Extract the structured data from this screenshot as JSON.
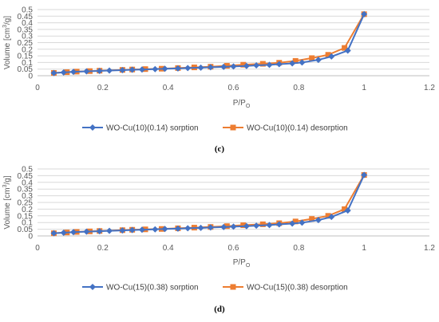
{
  "colors": {
    "sorption": "#4472c4",
    "desorption": "#ed7d31",
    "grid": "#d9d9d9",
    "axis": "#bfbfbf"
  },
  "chart_data": [
    {
      "type": "line",
      "panel_label": "(c)",
      "xlabel": "P/P",
      "xlabel_sub": "O",
      "ylabel_pre": "Volume [cm",
      "ylabel_sup": "3",
      "ylabel_post": "/g]",
      "xlim": [
        0,
        1.2
      ],
      "ylim": [
        0,
        0.5
      ],
      "xticks": [
        "0",
        "0.2",
        "0.4",
        "0.6",
        "0.8",
        "1",
        "1.2"
      ],
      "yticks": [
        "0",
        "0.05",
        "0.1",
        "0.15",
        "0.2",
        "0.25",
        "0.3",
        "0.35",
        "0.4",
        "0.45",
        "0.5"
      ],
      "grid": "horizontal",
      "legend_position": "bottom",
      "series": [
        {
          "name": "WO-Cu(10)(0.14) sorption",
          "marker": "diamond",
          "x": [
            0.05,
            0.08,
            0.11,
            0.15,
            0.19,
            0.22,
            0.26,
            0.29,
            0.32,
            0.36,
            0.39,
            0.43,
            0.46,
            0.5,
            0.53,
            0.57,
            0.6,
            0.64,
            0.67,
            0.71,
            0.74,
            0.78,
            0.81,
            0.86,
            0.9,
            0.95,
            1.0
          ],
          "y": [
            0.02,
            0.025,
            0.029,
            0.033,
            0.036,
            0.039,
            0.042,
            0.045,
            0.047,
            0.05,
            0.053,
            0.055,
            0.058,
            0.061,
            0.064,
            0.067,
            0.07,
            0.074,
            0.078,
            0.082,
            0.087,
            0.093,
            0.1,
            0.12,
            0.145,
            0.19,
            0.465
          ]
        },
        {
          "name": "WO-Cu(10)(0.14) desorption",
          "marker": "square",
          "x": [
            0.05,
            0.09,
            0.12,
            0.16,
            0.19,
            0.26,
            0.29,
            0.33,
            0.38,
            0.43,
            0.48,
            0.53,
            0.58,
            0.63,
            0.69,
            0.74,
            0.79,
            0.84,
            0.89,
            0.94,
            1.0
          ],
          "y": [
            0.021,
            0.027,
            0.031,
            0.035,
            0.038,
            0.044,
            0.047,
            0.05,
            0.053,
            0.058,
            0.063,
            0.068,
            0.075,
            0.083,
            0.09,
            0.098,
            0.112,
            0.133,
            0.158,
            0.21,
            0.465
          ]
        }
      ]
    },
    {
      "type": "line",
      "panel_label": "(d)",
      "xlabel": "P/P",
      "xlabel_sub": "O",
      "ylabel_pre": "Volume [cm",
      "ylabel_sup": "3",
      "ylabel_post": "/g]",
      "xlim": [
        0,
        1.2
      ],
      "ylim": [
        0,
        0.5
      ],
      "xticks": [
        "0",
        "0.2",
        "0.4",
        "0.6",
        "0.8",
        "1",
        "1.2"
      ],
      "yticks": [
        "0",
        "0.05",
        "0.1",
        "0.15",
        "0.2",
        "0.25",
        "0.3",
        "0.35",
        "0.4",
        "0.45",
        "0.5"
      ],
      "grid": "horizontal",
      "legend_position": "bottom",
      "series": [
        {
          "name": "WO-Cu(15)(0.38) sorption",
          "marker": "diamond",
          "x": [
            0.05,
            0.08,
            0.11,
            0.15,
            0.19,
            0.22,
            0.26,
            0.29,
            0.32,
            0.36,
            0.39,
            0.43,
            0.46,
            0.5,
            0.53,
            0.57,
            0.6,
            0.64,
            0.67,
            0.71,
            0.74,
            0.78,
            0.81,
            0.86,
            0.9,
            0.95,
            1.0
          ],
          "y": [
            0.02,
            0.024,
            0.028,
            0.032,
            0.035,
            0.038,
            0.041,
            0.044,
            0.046,
            0.049,
            0.052,
            0.054,
            0.057,
            0.06,
            0.063,
            0.066,
            0.069,
            0.073,
            0.077,
            0.081,
            0.086,
            0.092,
            0.099,
            0.118,
            0.142,
            0.19,
            0.455
          ]
        },
        {
          "name": "WO-Cu(15)(0.38) desorption",
          "marker": "square",
          "x": [
            0.05,
            0.09,
            0.12,
            0.16,
            0.19,
            0.26,
            0.29,
            0.33,
            0.38,
            0.43,
            0.48,
            0.53,
            0.58,
            0.63,
            0.69,
            0.74,
            0.79,
            0.84,
            0.89,
            0.94,
            1.0
          ],
          "y": [
            0.02,
            0.026,
            0.03,
            0.034,
            0.037,
            0.043,
            0.046,
            0.049,
            0.052,
            0.057,
            0.062,
            0.067,
            0.073,
            0.08,
            0.087,
            0.095,
            0.108,
            0.127,
            0.15,
            0.2,
            0.455
          ]
        }
      ]
    }
  ]
}
